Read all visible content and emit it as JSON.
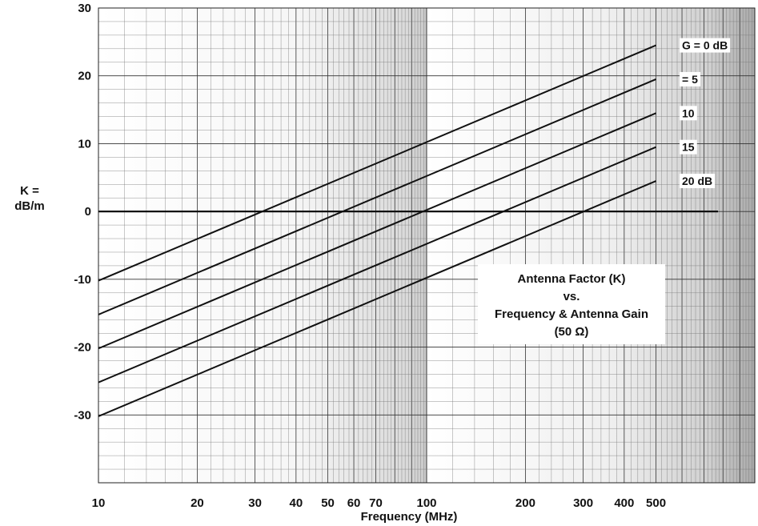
{
  "chart_data": {
    "type": "line",
    "title": "",
    "xlabel": "Frequency (MHz)",
    "ylabel_lines": [
      "K =",
      "dB/m"
    ],
    "x_scale": "log",
    "xlim": [
      10,
      1000
    ],
    "ylim": [
      -40,
      30
    ],
    "grid": true,
    "x_tick_labels": [
      {
        "value": 10,
        "label": "10"
      },
      {
        "value": 20,
        "label": "20"
      },
      {
        "value": 30,
        "label": "30"
      },
      {
        "value": 40,
        "label": "40"
      },
      {
        "value": 50,
        "label": "50"
      },
      {
        "value": 60,
        "label": "60"
      },
      {
        "value": 70,
        "label": "70"
      },
      {
        "value": 100,
        "label": "100"
      },
      {
        "value": 200,
        "label": "200"
      },
      {
        "value": 300,
        "label": "300"
      },
      {
        "value": 400,
        "label": "400"
      },
      {
        "value": 500,
        "label": "500"
      }
    ],
    "y_tick_labels": [
      {
        "value": 30,
        "label": "30"
      },
      {
        "value": 20,
        "label": "20"
      },
      {
        "value": 10,
        "label": "10"
      },
      {
        "value": 0,
        "label": "0"
      },
      {
        "value": -10,
        "label": "-10"
      },
      {
        "value": -20,
        "label": "-20"
      },
      {
        "value": -30,
        "label": "-30"
      }
    ],
    "reference_line_y": 0,
    "series": [
      {
        "label": "G = 0 dB",
        "x": [
          10,
          500
        ],
        "y": [
          -10.2,
          24.5
        ]
      },
      {
        "label": "= 5",
        "x": [
          10,
          500
        ],
        "y": [
          -15.2,
          19.5
        ]
      },
      {
        "label": "10",
        "x": [
          10,
          500
        ],
        "y": [
          -20.2,
          14.5
        ]
      },
      {
        "label": "15",
        "x": [
          10,
          500
        ],
        "y": [
          -25.2,
          9.5
        ]
      },
      {
        "label": "20 dB",
        "x": [
          10,
          500
        ],
        "y": [
          -30.2,
          4.5
        ]
      }
    ],
    "annotation_lines": [
      "Antenna Factor (K)",
      "vs.",
      "Frequency & Antenna Gain",
      "(50 Ω)"
    ]
  }
}
